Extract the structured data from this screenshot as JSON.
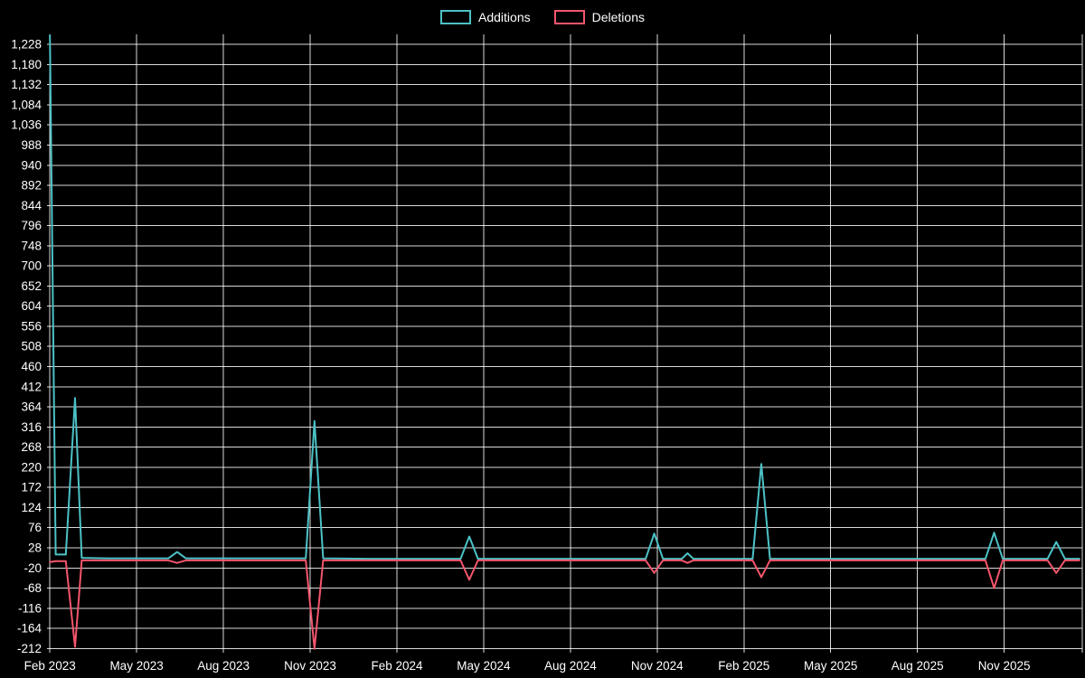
{
  "legend": {
    "items": [
      {
        "label": "Additions",
        "color": "#4cc2c6"
      },
      {
        "label": "Deletions",
        "color": "#f4566c"
      }
    ]
  },
  "chart_data": {
    "type": "line",
    "title": "",
    "xlabel": "",
    "ylabel": "",
    "x_unit_note": "months since Feb 2023 (weekly additions/deletions)",
    "grid": true,
    "legend_position": "top-center",
    "background_color": "#000000",
    "grid_color": "#ffffff",
    "text_color": "#ffffff",
    "xlim": [
      -0.1,
      35.7
    ],
    "ylim": [
      -222,
      1252
    ],
    "x_ticks": [
      {
        "m": 0,
        "label": "Feb 2023"
      },
      {
        "m": 3,
        "label": "May 2023"
      },
      {
        "m": 6,
        "label": "Aug 2023"
      },
      {
        "m": 9,
        "label": "Nov 2023"
      },
      {
        "m": 12,
        "label": "Feb 2024"
      },
      {
        "m": 15,
        "label": "May 2024"
      },
      {
        "m": 18,
        "label": "Aug 2024"
      },
      {
        "m": 21,
        "label": "Nov 2024"
      },
      {
        "m": 24,
        "label": "Feb 2025"
      },
      {
        "m": 27,
        "label": "May 2025"
      },
      {
        "m": 30,
        "label": "Aug 2025"
      },
      {
        "m": 33,
        "label": "Nov 2025"
      }
    ],
    "y_ticks": [
      {
        "v": 1228,
        "label": "1,228"
      },
      {
        "v": 1180,
        "label": "1,180"
      },
      {
        "v": 1132,
        "label": "1,132"
      },
      {
        "v": 1084,
        "label": "1,084"
      },
      {
        "v": 1036,
        "label": "1,036"
      },
      {
        "v": 988,
        "label": "988"
      },
      {
        "v": 940,
        "label": "940"
      },
      {
        "v": 892,
        "label": "892"
      },
      {
        "v": 844,
        "label": "844"
      },
      {
        "v": 796,
        "label": "796"
      },
      {
        "v": 748,
        "label": "748"
      },
      {
        "v": 700,
        "label": "700"
      },
      {
        "v": 652,
        "label": "652"
      },
      {
        "v": 604,
        "label": "604"
      },
      {
        "v": 556,
        "label": "556"
      },
      {
        "v": 508,
        "label": "508"
      },
      {
        "v": 460,
        "label": "460"
      },
      {
        "v": 412,
        "label": "412"
      },
      {
        "v": 364,
        "label": "364"
      },
      {
        "v": 316,
        "label": "316"
      },
      {
        "v": 268,
        "label": "268"
      },
      {
        "v": 220,
        "label": "220"
      },
      {
        "v": 172,
        "label": "172"
      },
      {
        "v": 124,
        "label": "124"
      },
      {
        "v": 76,
        "label": "76"
      },
      {
        "v": 28,
        "label": "28"
      },
      {
        "v": -20,
        "label": "-20"
      },
      {
        "v": -68,
        "label": "-68"
      },
      {
        "v": -116,
        "label": "-116"
      },
      {
        "v": -164,
        "label": "-164"
      },
      {
        "v": -212,
        "label": "-212"
      }
    ],
    "series": [
      {
        "name": "Additions",
        "color": "#4cc2c6",
        "points": [
          [
            0,
            1250
          ],
          [
            0.2,
            12
          ],
          [
            0.55,
            12
          ],
          [
            0.87,
            385
          ],
          [
            1.1,
            4
          ],
          [
            2,
            3
          ],
          [
            4.1,
            3
          ],
          [
            4.4,
            18
          ],
          [
            4.7,
            3
          ],
          [
            8.85,
            3
          ],
          [
            9.15,
            330
          ],
          [
            9.45,
            3
          ],
          [
            11,
            2
          ],
          [
            14.2,
            2
          ],
          [
            14.5,
            55
          ],
          [
            14.8,
            2
          ],
          [
            17,
            2
          ],
          [
            20.6,
            2
          ],
          [
            20.9,
            62
          ],
          [
            21.2,
            2
          ],
          [
            21.85,
            2
          ],
          [
            22.05,
            15
          ],
          [
            22.25,
            2
          ],
          [
            24.3,
            2
          ],
          [
            24.6,
            228
          ],
          [
            24.9,
            2
          ],
          [
            27,
            2
          ],
          [
            30,
            2
          ],
          [
            32.35,
            2
          ],
          [
            32.65,
            64
          ],
          [
            32.95,
            2
          ],
          [
            34.5,
            2
          ],
          [
            34.8,
            42
          ],
          [
            35.1,
            2
          ],
          [
            35.6,
            2
          ]
        ]
      },
      {
        "name": "Deletions",
        "color": "#f4566c",
        "points": [
          [
            0,
            -6
          ],
          [
            0.2,
            -4
          ],
          [
            0.55,
            -4
          ],
          [
            0.87,
            -208
          ],
          [
            1.1,
            -2
          ],
          [
            2,
            -2
          ],
          [
            4.1,
            -2
          ],
          [
            4.4,
            -8
          ],
          [
            4.7,
            -2
          ],
          [
            8.85,
            -2
          ],
          [
            9.15,
            -213
          ],
          [
            9.45,
            -2
          ],
          [
            11,
            -2
          ],
          [
            14.2,
            -2
          ],
          [
            14.5,
            -48
          ],
          [
            14.8,
            -2
          ],
          [
            17,
            -2
          ],
          [
            20.6,
            -2
          ],
          [
            20.9,
            -32
          ],
          [
            21.2,
            -2
          ],
          [
            21.85,
            -2
          ],
          [
            22.05,
            -8
          ],
          [
            22.25,
            -2
          ],
          [
            24.3,
            -2
          ],
          [
            24.6,
            -42
          ],
          [
            24.9,
            -2
          ],
          [
            27,
            -2
          ],
          [
            30,
            -2
          ],
          [
            32.35,
            -2
          ],
          [
            32.65,
            -68
          ],
          [
            32.95,
            -2
          ],
          [
            34.5,
            -2
          ],
          [
            34.8,
            -32
          ],
          [
            35.1,
            -2
          ],
          [
            35.6,
            -2
          ]
        ]
      }
    ]
  }
}
